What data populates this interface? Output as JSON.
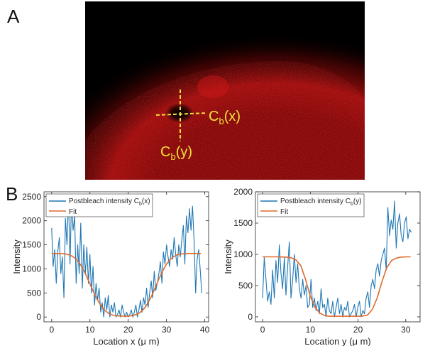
{
  "panel_a": {
    "letter": "A",
    "label_cx_main": "C",
    "label_cx_sub": "b",
    "label_cx_tail": "(x)",
    "label_cy_main": "C",
    "label_cy_sub": "b",
    "label_cy_tail": "(y)",
    "marker_color": "#f0e23a"
  },
  "panel_b": {
    "letter": "B"
  },
  "colors": {
    "raw": "#1f77b4",
    "fit": "#e06a2b",
    "background": "#000000",
    "signal": "#cc1010"
  },
  "chart_data": [
    {
      "type": "line",
      "xlabel": "Location x (μ m)",
      "ylabel": "Intensity",
      "xlim": [
        -2,
        41
      ],
      "ylim": [
        -100,
        2600
      ],
      "xticks": [
        0,
        10,
        20,
        30,
        40
      ],
      "yticks": [
        0,
        500,
        1000,
        1500,
        2000,
        2500
      ],
      "legend": {
        "position": "top-left",
        "entries": [
          "Postbleach intensity C_b(x)",
          "Fit"
        ]
      },
      "legend_main": "Postbleach intensity C",
      "legend_sub": "b",
      "legend_tail": "(x)",
      "legend_fit": "Fit",
      "series": [
        {
          "name": "Postbleach intensity C_b(x)",
          "x": [
            0,
            0.4,
            0.8,
            1.2,
            1.6,
            2.0,
            2.4,
            2.8,
            3.2,
            3.6,
            4.0,
            4.4,
            4.8,
            5.2,
            5.6,
            6.0,
            6.4,
            6.8,
            7.2,
            7.6,
            8.0,
            8.4,
            8.8,
            9.2,
            9.6,
            10.0,
            10.4,
            10.8,
            11.2,
            11.6,
            12.0,
            12.4,
            12.8,
            13.2,
            13.6,
            14.0,
            14.4,
            14.8,
            15.2,
            15.6,
            16.0,
            16.4,
            16.8,
            17.2,
            17.6,
            18.0,
            18.4,
            18.8,
            19.2,
            19.6,
            20.0,
            20.4,
            20.8,
            21.2,
            21.6,
            22.0,
            22.4,
            22.8,
            23.2,
            23.6,
            24.0,
            24.4,
            24.8,
            25.2,
            25.6,
            26.0,
            26.4,
            26.8,
            27.2,
            27.6,
            28.0,
            28.4,
            28.8,
            29.2,
            29.6,
            30.0,
            30.4,
            30.8,
            31.2,
            31.6,
            32.0,
            32.4,
            32.8,
            33.2,
            33.6,
            34.0,
            34.4,
            34.8,
            35.2,
            35.6,
            36.0,
            36.4,
            36.8,
            37.2,
            37.6,
            38.0,
            38.4,
            38.8,
            39.2
          ],
          "y": [
            1850,
            1050,
            1400,
            700,
            1350,
            1650,
            900,
            1250,
            400,
            2050,
            1500,
            2500,
            1100,
            2450,
            1800,
            2100,
            700,
            1500,
            900,
            1950,
            600,
            1500,
            900,
            1450,
            700,
            1300,
            500,
            1050,
            250,
            700,
            350,
            600,
            100,
            300,
            0,
            400,
            150,
            450,
            0,
            250,
            100,
            300,
            0,
            50,
            150,
            0,
            250,
            100,
            0,
            100,
            0,
            50,
            150,
            0,
            100,
            250,
            0,
            150,
            350,
            100,
            400,
            250,
            600,
            200,
            500,
            750,
            400,
            950,
            550,
            700,
            900,
            1150,
            700,
            1350,
            1100,
            1500,
            1250,
            1050,
            1400,
            1200,
            1650,
            1300,
            1050,
            1500,
            1250,
            1600,
            1900,
            1100,
            2100,
            1750,
            2250,
            1800,
            2300,
            1600,
            500,
            1200,
            1400,
            1000,
            500
          ],
          "color": "#1f77b4"
        },
        {
          "name": "Fit",
          "x": [
            0,
            1,
            2,
            3,
            4,
            5,
            6,
            7,
            8,
            9,
            10,
            11,
            12,
            13,
            14,
            15,
            16,
            17,
            18,
            19,
            20,
            21,
            22,
            23,
            24,
            25,
            26,
            27,
            28,
            29,
            30,
            31,
            32,
            33,
            34,
            35,
            36,
            37,
            38,
            39
          ],
          "y": [
            1320,
            1320,
            1320,
            1315,
            1305,
            1280,
            1230,
            1150,
            1030,
            870,
            690,
            510,
            350,
            220,
            130,
            70,
            40,
            25,
            20,
            20,
            20,
            30,
            50,
            90,
            160,
            270,
            420,
            600,
            790,
            960,
            1100,
            1200,
            1260,
            1295,
            1310,
            1318,
            1320,
            1320,
            1320,
            1320
          ],
          "color": "#e06a2b"
        }
      ]
    },
    {
      "type": "line",
      "xlabel": "Location y (μ m)",
      "ylabel": "Intensity",
      "xlim": [
        -1.5,
        33
      ],
      "ylim": [
        -80,
        2000
      ],
      "xticks": [
        0,
        10,
        20,
        30
      ],
      "yticks": [
        0,
        500,
        1000,
        1500,
        2000
      ],
      "legend": {
        "position": "top-left",
        "entries": [
          "Postbleach intensity C_b(y)",
          "Fit"
        ]
      },
      "legend_main": "Postbleach intensity C",
      "legend_sub": "b",
      "legend_tail": "(y)",
      "legend_fit": "Fit",
      "series": [
        {
          "name": "Postbleach intensity C_b(y)",
          "x": [
            0,
            0.35,
            0.7,
            1.05,
            1.4,
            1.75,
            2.1,
            2.45,
            2.8,
            3.15,
            3.5,
            3.85,
            4.2,
            4.55,
            4.9,
            5.25,
            5.6,
            5.95,
            6.3,
            6.65,
            7.0,
            7.35,
            7.7,
            8.05,
            8.4,
            8.75,
            9.1,
            9.45,
            9.8,
            10.15,
            10.5,
            10.85,
            11.2,
            11.55,
            11.9,
            12.25,
            12.6,
            12.95,
            13.3,
            13.65,
            14.0,
            14.35,
            14.7,
            15.05,
            15.4,
            15.75,
            16.1,
            16.45,
            16.8,
            17.15,
            17.5,
            17.85,
            18.2,
            18.55,
            18.9,
            19.25,
            19.6,
            19.95,
            20.3,
            20.65,
            21.0,
            21.35,
            21.7,
            22.05,
            22.4,
            22.75,
            23.1,
            23.45,
            23.8,
            24.15,
            24.5,
            24.85,
            25.2,
            25.55,
            25.9,
            26.25,
            26.6,
            26.95,
            27.3,
            27.65,
            28.0,
            28.35,
            28.7,
            29.05,
            29.4,
            29.75,
            30.1,
            30.45,
            30.8,
            31.15
          ],
          "y": [
            300,
            950,
            600,
            250,
            400,
            200,
            750,
            300,
            900,
            550,
            1150,
            700,
            450,
            950,
            350,
            800,
            1200,
            300,
            600,
            1000,
            550,
            850,
            450,
            300,
            600,
            350,
            500,
            150,
            200,
            600,
            150,
            300,
            100,
            250,
            50,
            450,
            150,
            200,
            0,
            300,
            100,
            50,
            250,
            0,
            150,
            300,
            50,
            200,
            0,
            150,
            100,
            250,
            0,
            50,
            100,
            200,
            0,
            150,
            250,
            0,
            100,
            50,
            300,
            400,
            150,
            500,
            600,
            450,
            750,
            850,
            650,
            900,
            1000,
            1100,
            750,
            1750,
            1300,
            1550,
            1400,
            1850,
            1100,
            1500,
            1650,
            1300,
            1200,
            1500,
            1600,
            1250,
            1400,
            1350
          ],
          "color": "#1f77b4"
        },
        {
          "name": "Fit",
          "x": [
            0,
            1,
            2,
            3,
            4,
            5,
            6,
            7,
            8,
            9,
            10,
            11,
            12,
            13,
            14,
            15,
            16,
            17,
            18,
            19,
            20,
            21,
            22,
            23,
            24,
            25,
            26,
            27,
            28,
            29,
            30,
            31
          ],
          "y": [
            960,
            960,
            960,
            960,
            958,
            955,
            945,
            910,
            820,
            600,
            330,
            150,
            60,
            20,
            10,
            10,
            10,
            10,
            10,
            10,
            10,
            12,
            30,
            120,
            300,
            560,
            780,
            900,
            940,
            955,
            960,
            960
          ],
          "color": "#e06a2b"
        }
      ]
    }
  ]
}
